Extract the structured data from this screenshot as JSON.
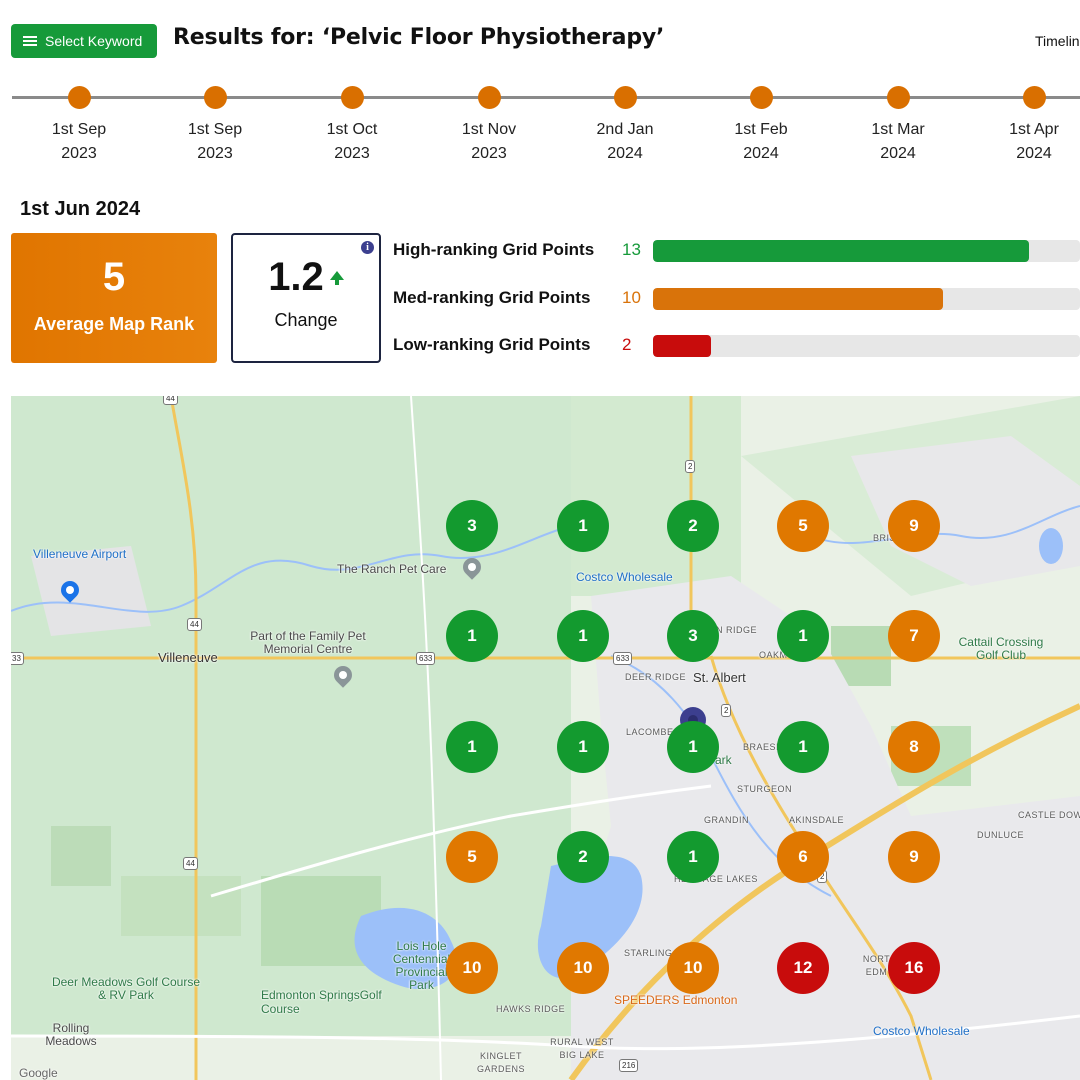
{
  "header": {
    "select_keyword_label": "Select Keyword",
    "title": "Results for: ‘Pelvic Floor Physiotherapy’",
    "timeline_link": "Timelin"
  },
  "timeline": [
    {
      "day": "1st Sep",
      "year": "2023"
    },
    {
      "day": "1st Sep",
      "year": "2023"
    },
    {
      "day": "1st Oct",
      "year": "2023"
    },
    {
      "day": "1st Nov",
      "year": "2023"
    },
    {
      "day": "2nd Jan",
      "year": "2024"
    },
    {
      "day": "1st Feb",
      "year": "2024"
    },
    {
      "day": "1st Mar",
      "year": "2024"
    },
    {
      "day": "1st Apr",
      "year": "2024"
    }
  ],
  "selected_date": "1st Jun 2024",
  "summary": {
    "average_rank": "5",
    "average_rank_label": "Average Map Rank",
    "change_value": "1.2",
    "change_label": "Change",
    "info_icon": "i"
  },
  "rankings": [
    {
      "label": "High-ranking Grid Points",
      "count": "13",
      "fraction": 0.88,
      "color": "#169a3a"
    },
    {
      "label": "Med-ranking Grid Points",
      "count": "10",
      "fraction": 0.68,
      "color": "#d9730a"
    },
    {
      "label": "Low-ranking Grid Points",
      "count": "2",
      "fraction": 0.135,
      "color": "#c80c0c"
    }
  ],
  "colors": {
    "high": "#139a2f",
    "med": "#e07800",
    "low": "#c80c0c"
  },
  "grid": [
    [
      {
        "rank": "3",
        "level": "high"
      },
      {
        "rank": "1",
        "level": "high"
      },
      {
        "rank": "2",
        "level": "high"
      },
      {
        "rank": "5",
        "level": "med"
      },
      {
        "rank": "9",
        "level": "med"
      }
    ],
    [
      {
        "rank": "1",
        "level": "high"
      },
      {
        "rank": "1",
        "level": "high"
      },
      {
        "rank": "3",
        "level": "high"
      },
      {
        "rank": "1",
        "level": "high"
      },
      {
        "rank": "7",
        "level": "med"
      }
    ],
    [
      {
        "rank": "1",
        "level": "high"
      },
      {
        "rank": "1",
        "level": "high"
      },
      {
        "rank": "1",
        "level": "high"
      },
      {
        "rank": "1",
        "level": "high"
      },
      {
        "rank": "8",
        "level": "med"
      }
    ],
    [
      {
        "rank": "5",
        "level": "med"
      },
      {
        "rank": "2",
        "level": "high"
      },
      {
        "rank": "1",
        "level": "high"
      },
      {
        "rank": "6",
        "level": "med"
      },
      {
        "rank": "9",
        "level": "med"
      }
    ],
    [
      {
        "rank": "10",
        "level": "med"
      },
      {
        "rank": "10",
        "level": "med"
      },
      {
        "rank": "10",
        "level": "med"
      },
      {
        "rank": "12",
        "level": "low"
      },
      {
        "rank": "16",
        "level": "low"
      }
    ]
  ],
  "map_labels": {
    "villeneuve_airport": "Villeneuve Airport",
    "ranch_pet_care": "The Ranch Pet Care",
    "costco_north": "Costco Wholesale",
    "pet_memorial": "Part of the Family Pet Memorial Centre",
    "villeneuve": "Villeneuve",
    "st_albert": "St. Albert",
    "deer_ridge": "DEER RIDGE",
    "lacombe": "LACOMBE",
    "braeside": "BRAESI",
    "sturgeon": "STURGEON",
    "akinsdale": "AKINSDALE",
    "grandin": "GRANDIN",
    "heritage_lakes": "HERITAGE LAKES",
    "oakmont": "OAKM",
    "erin_ridge": "N RIDGE",
    "briarwood": "BRIS    ES",
    "park": "Park",
    "cattail": "Cattail Crossing Golf Club",
    "castle_downs": "CASTLE DOW",
    "dunluce": "DUNLUCE",
    "lois_hole": "Lois Hole Centennial Provincial Park",
    "deer_meadows": "Deer Meadows Golf Course & RV Park",
    "edmonton_springs": "Edmonton SpringsGolf Course",
    "rolling_meadows": "Rolling Meadows",
    "hawks_ridge": "HAWKS RIDGE",
    "rural_west": "RURAL WEST BIG LAKE",
    "kinglet": "KINGLET GARDENS",
    "starling": "STARLING",
    "speeders": "SPEEDERS Edmonton",
    "north_edm": "NORT EDM",
    "costco_south": "Costco Wholesale",
    "google": "Google"
  },
  "route_shields": [
    "44",
    "44",
    "44",
    "33",
    "633",
    "633",
    "2",
    "2",
    "2",
    "216"
  ]
}
